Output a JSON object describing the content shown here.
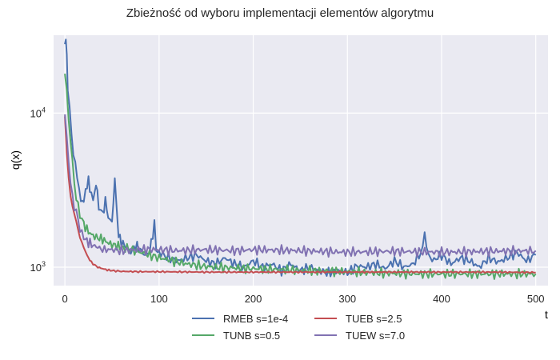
{
  "chart_data": {
    "type": "line",
    "title": "Zbieżność od wyboru implementacji elementów algorytmu",
    "xlabel": "t",
    "ylabel": "q(x)",
    "xlim": [
      -12,
      513
    ],
    "ylim": [
      760,
      32000
    ],
    "yscale": "log",
    "grid": true,
    "legend_position": "bottom-center",
    "x_ticks": [
      0,
      100,
      200,
      300,
      400,
      500
    ],
    "y_ticks": [
      {
        "value": 1000,
        "base": "10",
        "exp": "3"
      },
      {
        "value": 10000,
        "base": "10",
        "exp": "4"
      }
    ],
    "background": "#EAEAF2",
    "series": [
      {
        "name": "RMEB s=1e-4",
        "color": "#4C72B0",
        "points": [
          [
            0,
            28000
          ],
          [
            1,
            30000
          ],
          [
            2,
            24000
          ],
          [
            3,
            14000
          ],
          [
            5,
            11000
          ],
          [
            7,
            7000
          ],
          [
            9,
            5500
          ],
          [
            11,
            4800
          ],
          [
            13,
            3800
          ],
          [
            15,
            3200
          ],
          [
            17,
            2800
          ],
          [
            20,
            2600
          ],
          [
            22,
            3200
          ],
          [
            25,
            3600
          ],
          [
            28,
            3000
          ],
          [
            30,
            2700
          ],
          [
            33,
            3500
          ],
          [
            36,
            2500
          ],
          [
            40,
            2200
          ],
          [
            43,
            2700
          ],
          [
            46,
            2100
          ],
          [
            50,
            2000
          ],
          [
            53,
            3600
          ],
          [
            55,
            2400
          ],
          [
            57,
            1600
          ],
          [
            60,
            1450
          ],
          [
            65,
            1350
          ],
          [
            70,
            1250
          ],
          [
            75,
            1380
          ],
          [
            80,
            1300
          ],
          [
            85,
            1200
          ],
          [
            90,
            1250
          ],
          [
            95,
            1900
          ],
          [
            97,
            1300
          ],
          [
            100,
            1250
          ],
          [
            110,
            1150
          ],
          [
            120,
            1100
          ],
          [
            130,
            1150
          ],
          [
            140,
            1200
          ],
          [
            150,
            1100
          ],
          [
            160,
            1050
          ],
          [
            170,
            1150
          ],
          [
            180,
            1050
          ],
          [
            190,
            1000
          ],
          [
            200,
            1100
          ],
          [
            210,
            1000
          ],
          [
            220,
            1050
          ],
          [
            230,
            950
          ],
          [
            240,
            1050
          ],
          [
            250,
            950
          ],
          [
            260,
            1000
          ],
          [
            270,
            950
          ],
          [
            280,
            920
          ],
          [
            290,
            950
          ],
          [
            300,
            920
          ],
          [
            310,
            1020
          ],
          [
            320,
            1000
          ],
          [
            330,
            1050
          ],
          [
            340,
            980
          ],
          [
            350,
            1100
          ],
          [
            360,
            1000
          ],
          [
            370,
            1050
          ],
          [
            380,
            1300
          ],
          [
            382,
            1800
          ],
          [
            384,
            1300
          ],
          [
            390,
            1100
          ],
          [
            400,
            1200
          ],
          [
            410,
            1050
          ],
          [
            420,
            1150
          ],
          [
            430,
            1100
          ],
          [
            440,
            1000
          ],
          [
            450,
            1150
          ],
          [
            460,
            1080
          ],
          [
            470,
            1150
          ],
          [
            480,
            1250
          ],
          [
            490,
            1100
          ],
          [
            500,
            1200
          ]
        ]
      },
      {
        "name": "TUNB s=0.5",
        "color": "#55A868",
        "points": [
          [
            0,
            18000
          ],
          [
            2,
            14000
          ],
          [
            4,
            9000
          ],
          [
            6,
            6500
          ],
          [
            8,
            5000
          ],
          [
            10,
            3500
          ],
          [
            12,
            2800
          ],
          [
            14,
            2500
          ],
          [
            16,
            2200
          ],
          [
            20,
            1900
          ],
          [
            25,
            1700
          ],
          [
            30,
            1600
          ],
          [
            35,
            1550
          ],
          [
            40,
            1520
          ],
          [
            45,
            1450
          ],
          [
            50,
            1400
          ],
          [
            55,
            1380
          ],
          [
            60,
            1350
          ],
          [
            70,
            1300
          ],
          [
            80,
            1250
          ],
          [
            90,
            1200
          ],
          [
            100,
            1150
          ],
          [
            110,
            1120
          ],
          [
            120,
            1080
          ],
          [
            130,
            1050
          ],
          [
            140,
            1030
          ],
          [
            150,
            1010
          ],
          [
            160,
            1000
          ],
          [
            180,
            990
          ],
          [
            200,
            980
          ],
          [
            220,
            970
          ],
          [
            240,
            960
          ],
          [
            260,
            950
          ],
          [
            280,
            945
          ],
          [
            300,
            935
          ],
          [
            320,
            925
          ],
          [
            340,
            915
          ],
          [
            360,
            910
          ],
          [
            380,
            905
          ],
          [
            400,
            905
          ],
          [
            420,
            905
          ],
          [
            440,
            905
          ],
          [
            460,
            905
          ],
          [
            480,
            905
          ],
          [
            500,
            905
          ]
        ]
      },
      {
        "name": "TUEB s=2.5",
        "color": "#C44E52",
        "points": [
          [
            0,
            9500
          ],
          [
            2,
            5500
          ],
          [
            4,
            3800
          ],
          [
            6,
            2900
          ],
          [
            8,
            2500
          ],
          [
            10,
            2200
          ],
          [
            12,
            2000
          ],
          [
            14,
            1750
          ],
          [
            16,
            1550
          ],
          [
            18,
            1450
          ],
          [
            20,
            1350
          ],
          [
            22,
            1250
          ],
          [
            25,
            1150
          ],
          [
            28,
            1080
          ],
          [
            30,
            1050
          ],
          [
            35,
            1000
          ],
          [
            40,
            980
          ],
          [
            45,
            960
          ],
          [
            50,
            950
          ],
          [
            60,
            940
          ],
          [
            80,
            935
          ],
          [
            100,
            935
          ],
          [
            150,
            930
          ],
          [
            200,
            930
          ],
          [
            250,
            930
          ],
          [
            300,
            930
          ],
          [
            350,
            930
          ],
          [
            400,
            930
          ],
          [
            450,
            930
          ],
          [
            500,
            925
          ]
        ]
      },
      {
        "name": "TUEW s=7.0",
        "color": "#8172B2",
        "points": [
          [
            0,
            9800
          ],
          [
            2,
            7000
          ],
          [
            4,
            4800
          ],
          [
            6,
            3500
          ],
          [
            8,
            2800
          ],
          [
            10,
            2500
          ],
          [
            12,
            2300
          ],
          [
            14,
            2000
          ],
          [
            16,
            1800
          ],
          [
            18,
            1650
          ],
          [
            20,
            1550
          ],
          [
            25,
            1450
          ],
          [
            30,
            1380
          ],
          [
            35,
            1350
          ],
          [
            40,
            1300
          ],
          [
            50,
            1300
          ],
          [
            60,
            1280
          ],
          [
            80,
            1300
          ],
          [
            100,
            1300
          ],
          [
            120,
            1280
          ],
          [
            150,
            1300
          ],
          [
            180,
            1280
          ],
          [
            200,
            1300
          ],
          [
            250,
            1280
          ],
          [
            300,
            1250
          ],
          [
            350,
            1270
          ],
          [
            400,
            1250
          ],
          [
            450,
            1270
          ],
          [
            500,
            1280
          ]
        ]
      }
    ]
  }
}
